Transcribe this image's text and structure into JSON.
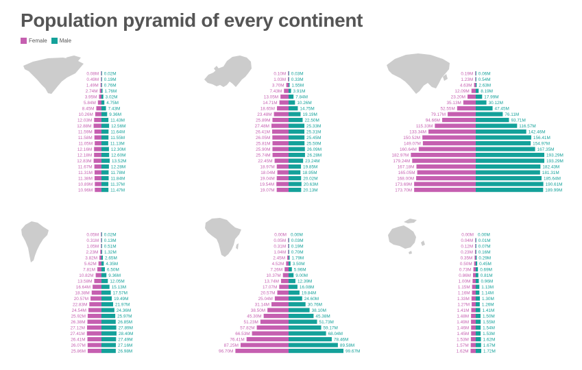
{
  "title": "Population pyramid of every continent",
  "legend": [
    {
      "label": "Female",
      "color": "#c55fb0"
    },
    {
      "label": "Male",
      "color": "#14a19a"
    }
  ],
  "colors": {
    "female": "#c55fb0",
    "male": "#14a19a",
    "map": "#cccccc",
    "text": "#555555"
  },
  "chart_data": [
    {
      "type": "bar",
      "map_icon": "north-america-map-icon",
      "series": [
        {
          "name": "Female",
          "labels": [
            "0.08M",
            "0.49M",
            "1.49M",
            "2.74M",
            "3.95M",
            "5.84M",
            "8.45M",
            "10.26M",
            "12.03M",
            "12.88M",
            "11.59M",
            "11.58M",
            "11.05M",
            "12.16M",
            "12.18M",
            "12.83M",
            "11.67M",
            "11.31M",
            "11.38M",
            "10.89M",
            "10.96M"
          ],
          "values": [
            0.08,
            0.49,
            1.49,
            2.74,
            3.95,
            5.84,
            8.45,
            10.26,
            12.03,
            12.88,
            11.59,
            11.58,
            11.05,
            12.16,
            12.18,
            12.83,
            11.67,
            11.31,
            11.38,
            10.89,
            10.96
          ]
        },
        {
          "name": "Male",
          "labels": [
            "0.02M",
            "0.19M",
            "0.76M",
            "1.76M",
            "3.02M",
            "4.75M",
            "7.43M",
            "9.36M",
            "11.43M",
            "12.56M",
            "11.64M",
            "11.55M",
            "11.13M",
            "12.30M",
            "12.60M",
            "13.52M",
            "12.28M",
            "11.78M",
            "11.84M",
            "11.37M",
            "11.47M"
          ],
          "values": [
            0.02,
            0.19,
            0.76,
            1.76,
            3.02,
            4.75,
            7.43,
            9.36,
            11.43,
            12.56,
            11.64,
            11.55,
            11.13,
            12.3,
            12.6,
            13.52,
            12.28,
            11.78,
            11.84,
            11.37,
            11.47
          ]
        }
      ]
    },
    {
      "type": "bar",
      "map_icon": "europe-map-icon",
      "series": [
        {
          "name": "Female",
          "labels": [
            "0.10M",
            "1.03M",
            "3.70M",
            "7.43M",
            "13.05M",
            "14.71M",
            "18.65M",
            "23.48M",
            "25.89M",
            "27.48M",
            "26.41M",
            "26.05M",
            "25.81M",
            "25.90M",
            "25.74M",
            "22.45M",
            "18.97M",
            "18.04M",
            "19.04M",
            "19.54M",
            "19.07M"
          ],
          "values": [
            0.1,
            1.03,
            3.7,
            7.43,
            13.05,
            14.71,
            18.65,
            23.48,
            25.89,
            27.48,
            26.41,
            26.05,
            25.81,
            25.9,
            25.74,
            22.45,
            18.97,
            18.04,
            19.04,
            19.54,
            19.07
          ]
        },
        {
          "name": "Male",
          "labels": [
            "0.03M",
            "0.33M",
            "1.55M",
            "3.91M",
            "7.84M",
            "10.26M",
            "14.75M",
            "19.19M",
            "22.50M",
            "25.33M",
            "25.31M",
            "25.45M",
            "25.50M",
            "26.09M",
            "26.28M",
            "23.24M",
            "19.85M",
            "18.95M",
            "20.02M",
            "20.63M",
            "20.13M"
          ],
          "values": [
            0.03,
            0.33,
            1.55,
            3.91,
            7.84,
            10.26,
            14.75,
            19.19,
            22.5,
            25.33,
            25.31,
            25.45,
            25.5,
            26.09,
            26.28,
            23.24,
            19.85,
            18.95,
            20.02,
            20.63,
            20.13
          ]
        }
      ]
    },
    {
      "type": "bar",
      "map_icon": "asia-map-icon",
      "series": [
        {
          "name": "Female",
          "labels": [
            "0.19M",
            "1.23M",
            "4.63M",
            "12.09M",
            "23.20M",
            "35.13M",
            "52.55M",
            "79.17M",
            "94.66M",
            "115.33M",
            "133.34M",
            "150.52M",
            "149.07M",
            "160.64M",
            "182.97M",
            "179.24M",
            "167.18M",
            "165.05M",
            "168.00M",
            "173.69M",
            "173.70M"
          ],
          "values": [
            0.19,
            1.23,
            4.63,
            12.09,
            23.2,
            35.13,
            52.55,
            79.17,
            94.66,
            115.33,
            133.34,
            150.52,
            149.07,
            160.64,
            182.97,
            179.24,
            167.18,
            165.05,
            168.0,
            173.69,
            173.7
          ]
        },
        {
          "name": "Male",
          "labels": [
            "0.06M",
            "0.54M",
            "2.63M",
            "8.19M",
            "17.99M",
            "30.12M",
            "47.45M",
            "76.11M",
            "93.71M",
            "116.57M",
            "142.46M",
            "156.41M",
            "154.97M",
            "167.35M",
            "193.29M",
            "193.29M",
            "182.43M",
            "181.31M",
            "185.64M",
            "190.61M",
            "189.99M"
          ],
          "values": [
            0.06,
            0.54,
            2.63,
            8.19,
            17.99,
            30.12,
            47.45,
            76.11,
            93.71,
            116.57,
            142.46,
            156.41,
            154.97,
            167.35,
            193.29,
            193.29,
            182.43,
            181.31,
            185.64,
            190.61,
            189.99
          ]
        }
      ]
    },
    {
      "type": "bar",
      "map_icon": "south-america-map-icon",
      "series": [
        {
          "name": "Female",
          "labels": [
            "0.05M",
            "0.31M",
            "1.05M",
            "2.23M",
            "3.82M",
            "5.62M",
            "7.81M",
            "10.82M",
            "13.58M",
            "16.64M",
            "18.38M",
            "20.57M",
            "22.83M",
            "24.54M",
            "25.92M",
            "26.38M",
            "27.12M",
            "27.41M",
            "26.41M",
            "26.07M",
            "25.86M"
          ],
          "values": [
            0.05,
            0.31,
            1.05,
            2.23,
            3.82,
            5.62,
            7.81,
            10.82,
            13.58,
            16.64,
            18.38,
            20.57,
            22.83,
            24.54,
            25.92,
            26.38,
            27.12,
            27.41,
            26.41,
            26.07,
            25.86
          ]
        },
        {
          "name": "Male",
          "labels": [
            "0.02M",
            "0.13M",
            "0.51M",
            "1.32M",
            "2.65M",
            "4.35M",
            "6.50M",
            "9.36M",
            "12.05M",
            "15.13M",
            "17.57M",
            "19.49M",
            "21.97M",
            "24.36M",
            "25.97M",
            "26.85M",
            "27.89M",
            "28.40M",
            "27.49M",
            "27.16M",
            "26.98M"
          ],
          "values": [
            0.02,
            0.13,
            0.51,
            1.32,
            2.65,
            4.35,
            6.5,
            9.36,
            12.05,
            15.13,
            17.57,
            19.49,
            21.97,
            24.36,
            25.97,
            26.85,
            27.89,
            28.4,
            27.49,
            27.16,
            26.98
          ]
        }
      ]
    },
    {
      "type": "bar",
      "map_icon": "africa-map-icon",
      "series": [
        {
          "name": "Female",
          "labels": [
            "0.00M",
            "0.05M",
            "0.31M",
            "1.04M",
            "2.45M",
            "4.52M",
            "7.26M",
            "10.37M",
            "13.74M",
            "17.07M",
            "20.57M",
            "25.04M",
            "31.14M",
            "38.50M",
            "45.30M",
            "51.23M",
            "57.82M",
            "66.53M",
            "76.41M",
            "87.25M",
            "96.70M"
          ],
          "values": [
            0.0,
            0.05,
            0.31,
            1.04,
            2.45,
            4.52,
            7.26,
            10.37,
            13.74,
            17.07,
            20.57,
            25.04,
            31.14,
            38.5,
            45.3,
            51.23,
            57.82,
            66.53,
            76.41,
            87.25,
            96.7
          ]
        },
        {
          "name": "Male",
          "labels": [
            "0.00M",
            "0.03M",
            "0.19M",
            "0.70M",
            "1.79M",
            "3.50M",
            "5.96M",
            "9.00M",
            "12.39M",
            "16.08M",
            "19.84M",
            "24.60M",
            "30.76M",
            "38.10M",
            "45.38M",
            "51.73M",
            "59.17M",
            "68.04M",
            "78.46M",
            "89.58M",
            "99.67M"
          ],
          "values": [
            0.0,
            0.03,
            0.19,
            0.7,
            1.79,
            3.5,
            5.96,
            9.0,
            12.39,
            16.08,
            19.84,
            24.6,
            30.76,
            38.1,
            45.38,
            51.73,
            59.17,
            68.04,
            78.46,
            89.58,
            99.67
          ]
        }
      ]
    },
    {
      "type": "bar",
      "map_icon": "oceania-map-icon",
      "series": [
        {
          "name": "Female",
          "labels": [
            "0.00M",
            "0.04M",
            "0.12M",
            "0.23M",
            "0.35M",
            "0.50M",
            "0.73M",
            "0.86M",
            "1.00M",
            "1.15M",
            "1.16M",
            "1.33M",
            "1.27M",
            "1.41M",
            "1.48M",
            "1.49M",
            "1.46M",
            "1.45M",
            "1.53M",
            "1.57M",
            "1.62M"
          ],
          "values": [
            0.0,
            0.04,
            0.12,
            0.23,
            0.35,
            0.5,
            0.73,
            0.86,
            1.0,
            1.15,
            1.16,
            1.33,
            1.27,
            1.41,
            1.48,
            1.49,
            1.46,
            1.45,
            1.53,
            1.57,
            1.62
          ]
        },
        {
          "name": "Male",
          "labels": [
            "0.00M",
            "0.01M",
            "0.07M",
            "0.16M",
            "0.29M",
            "0.45M",
            "0.69M",
            "0.81M",
            "0.96M",
            "1.13M",
            "1.14M",
            "1.30M",
            "1.26M",
            "1.41M",
            "1.50M",
            "1.55M",
            "1.54M",
            "1.53M",
            "1.62M",
            "1.67M",
            "1.72M"
          ],
          "values": [
            0.0,
            0.01,
            0.07,
            0.16,
            0.29,
            0.45,
            0.69,
            0.81,
            0.96,
            1.13,
            1.14,
            1.3,
            1.26,
            1.41,
            1.5,
            1.55,
            1.54,
            1.53,
            1.62,
            1.67,
            1.72
          ]
        }
      ]
    }
  ]
}
